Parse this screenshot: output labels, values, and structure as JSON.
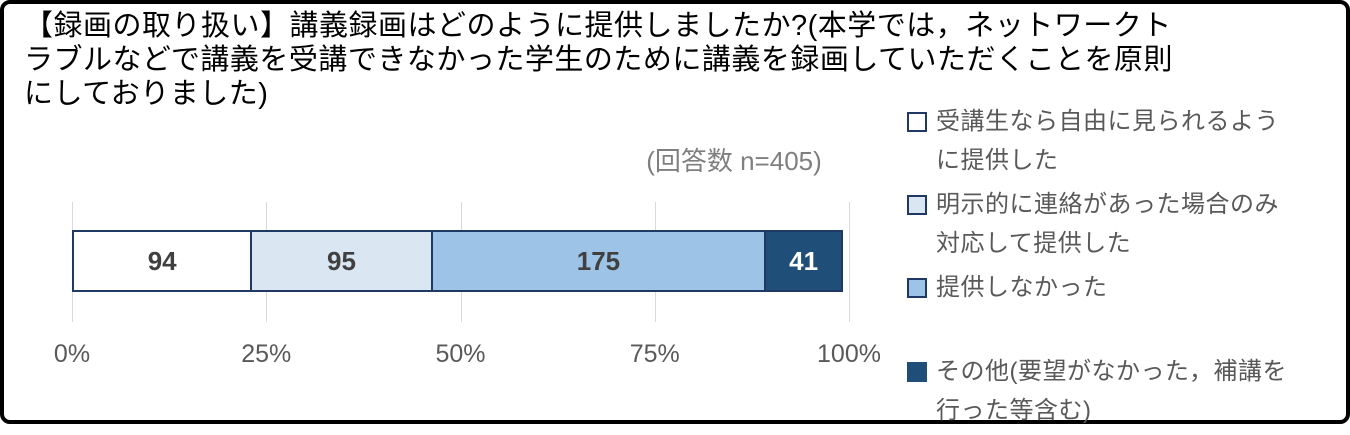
{
  "header": {
    "title_lines": [
      "【録画の取り扱い】講義録画はどのように提供しましたか?(本学では，ネットワークト",
      "ラブルなどで講義を受講できなかった学生のために講義を録画していただくことを原則",
      "にしておりました)"
    ],
    "response_count": "(回答数 n=405)"
  },
  "chart_data": {
    "type": "bar",
    "stacked": true,
    "orientation": "horizontal",
    "total": 405,
    "segments": [
      {
        "label": "受講生なら自由に見られるように提供した",
        "value": 94,
        "fill": "#FFFFFF",
        "text_color": "#404040"
      },
      {
        "label": "明示的に連絡があった場合のみ対応して提供した",
        "value": 95,
        "fill": "#DAE7F3",
        "text_color": "#404040"
      },
      {
        "label": "提供しなかった",
        "value": 175,
        "fill": "#9DC3E6",
        "text_color": "#404040"
      },
      {
        "label": "その他(要望がなかった，補講を行った等含む)",
        "value": 41,
        "fill": "#1F4E79",
        "text_color": "#FFFFFF"
      }
    ],
    "x_ticks": [
      "0%",
      "25%",
      "50%",
      "75%",
      "100%"
    ],
    "xlim": [
      0,
      100
    ],
    "grid": true,
    "legend_position": "right"
  },
  "legend": {
    "items": [
      {
        "lines": [
          "受講生なら自由に見られるよう",
          "に提供した"
        ],
        "fill": "#FFFFFF",
        "border": "#1F3864",
        "gap_before": false
      },
      {
        "lines": [
          "明示的に連絡があった場合のみ",
          "対応して提供した"
        ],
        "fill": "#DAE7F3",
        "border": "#1F3864",
        "gap_before": false
      },
      {
        "lines": [
          "提供しなかった"
        ],
        "fill": "#9DC3E6",
        "border": "#1F3864",
        "gap_before": false
      },
      {
        "lines": [
          "その他(要望がなかった，補講を",
          "行った等含む)"
        ],
        "fill": "#1F4E79",
        "border": "#1F4E79",
        "gap_before": true
      }
    ]
  },
  "colors": {
    "bar_border": "#1F3864",
    "gridline": "#D9D9D9",
    "axis_text": "#595959",
    "legend_text": "#595959",
    "value_text": "#404040",
    "subtitle_text": "#7F7F7F",
    "frame_border": "#000000"
  }
}
